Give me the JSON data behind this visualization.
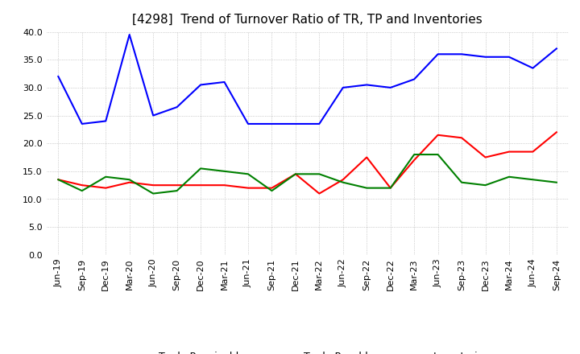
{
  "title": "[4298]  Trend of Turnover Ratio of TR, TP and Inventories",
  "ylim": [
    0.0,
    40.0
  ],
  "yticks": [
    0.0,
    5.0,
    10.0,
    15.0,
    20.0,
    25.0,
    30.0,
    35.0,
    40.0
  ],
  "x_labels": [
    "Jun-19",
    "Sep-19",
    "Dec-19",
    "Mar-20",
    "Jun-20",
    "Sep-20",
    "Dec-20",
    "Mar-21",
    "Jun-21",
    "Sep-21",
    "Dec-21",
    "Mar-22",
    "Jun-22",
    "Sep-22",
    "Dec-22",
    "Mar-23",
    "Jun-23",
    "Sep-23",
    "Dec-23",
    "Mar-24",
    "Jun-24",
    "Sep-24"
  ],
  "trade_receivables": [
    13.5,
    12.5,
    12.0,
    13.0,
    12.5,
    12.5,
    12.5,
    12.5,
    12.0,
    12.0,
    14.5,
    11.0,
    13.5,
    17.5,
    12.0,
    17.0,
    21.5,
    21.0,
    17.5,
    18.5,
    18.5,
    22.0
  ],
  "trade_payables": [
    32.0,
    23.5,
    24.0,
    39.5,
    25.0,
    26.5,
    30.5,
    31.0,
    23.5,
    23.5,
    23.5,
    23.5,
    30.0,
    30.5,
    30.0,
    31.5,
    36.0,
    36.0,
    35.5,
    35.5,
    33.5,
    37.0
  ],
  "inventories": [
    13.5,
    11.5,
    14.0,
    13.5,
    11.0,
    11.5,
    15.5,
    15.0,
    14.5,
    11.5,
    14.5,
    14.5,
    13.0,
    12.0,
    12.0,
    18.0,
    18.0,
    13.0,
    12.5,
    14.0,
    13.5,
    13.0
  ],
  "tr_color": "#ff0000",
  "tp_color": "#0000ff",
  "inv_color": "#008000",
  "background_color": "#ffffff",
  "grid_color": "#aaaaaa",
  "title_fontsize": 11,
  "tick_fontsize": 8,
  "legend_fontsize": 9
}
